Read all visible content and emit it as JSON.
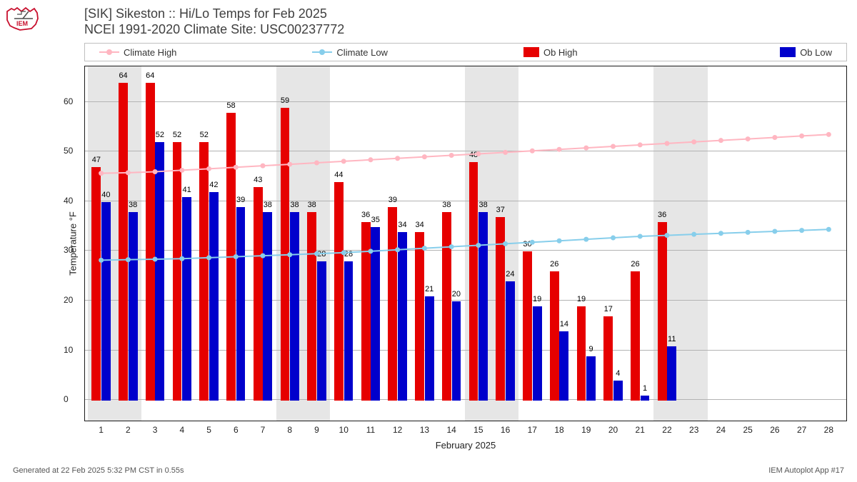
{
  "logo": {
    "text": "IEM",
    "outline_color": "#c8102e",
    "dial_color": "#4d4d4d"
  },
  "title": {
    "line1": "[SIK] Sikeston :: Hi/Lo Temps for Feb 2025",
    "line2": "NCEI 1991-2020 Climate Site: USC00237772",
    "fontsize": 18,
    "color": "#404040"
  },
  "legend": {
    "climate_high": "Climate High",
    "climate_low": "Climate Low",
    "ob_high": "Ob High",
    "ob_low": "Ob Low"
  },
  "axes": {
    "xlabel": "February 2025",
    "ylabel": "Temperature °F",
    "ylim_min": -4,
    "ylim_max": 67,
    "yticks": [
      0,
      10,
      20,
      30,
      40,
      50,
      60
    ],
    "xticks": [
      1,
      2,
      3,
      4,
      5,
      6,
      7,
      8,
      9,
      10,
      11,
      12,
      13,
      14,
      15,
      16,
      17,
      18,
      19,
      20,
      21,
      22,
      23,
      24,
      25,
      26,
      27,
      28
    ],
    "tick_fontsize": 12,
    "label_fontsize": 13,
    "grid_color": "#b3b3b3",
    "border_color": "#1a1a1a",
    "background_color": "#ffffff",
    "weekend_band_color": "#e6e6e6",
    "weekend_pairs": [
      [
        1,
        2
      ],
      [
        8,
        9
      ],
      [
        15,
        16
      ],
      [
        22,
        23
      ]
    ]
  },
  "series": {
    "climate_high": {
      "color": "#ffb6c1",
      "marker_size": 7,
      "line_width": 2,
      "values": [
        45.5,
        45.6,
        45.8,
        46.1,
        46.4,
        46.7,
        47.0,
        47.3,
        47.6,
        47.9,
        48.2,
        48.5,
        48.8,
        49.1,
        49.4,
        49.7,
        50.0,
        50.3,
        50.6,
        50.9,
        51.2,
        51.5,
        51.8,
        52.1,
        52.4,
        52.7,
        53.0,
        53.3
      ]
    },
    "climate_low": {
      "color": "#87ceeb",
      "marker_size": 7,
      "line_width": 2,
      "values": [
        28.0,
        28.1,
        28.2,
        28.3,
        28.5,
        28.7,
        28.9,
        29.1,
        29.3,
        29.5,
        29.8,
        30.1,
        30.4,
        30.7,
        31.0,
        31.3,
        31.6,
        31.9,
        32.2,
        32.5,
        32.8,
        33.0,
        33.2,
        33.4,
        33.6,
        33.8,
        34.0,
        34.2
      ]
    },
    "ob_high": {
      "color": "#e60000",
      "bar_width": 0.34,
      "values": [
        47,
        64,
        64,
        52,
        52,
        58,
        43,
        59,
        38,
        44,
        36,
        39,
        34,
        38,
        48,
        37,
        30,
        26,
        19,
        17,
        26,
        36
      ]
    },
    "ob_low": {
      "color": "#0000cc",
      "bar_width": 0.34,
      "values": [
        40,
        38,
        52,
        41,
        42,
        39,
        38,
        38,
        28,
        28,
        35,
        34,
        21,
        20,
        38,
        24,
        19,
        14,
        9,
        4,
        1,
        11
      ]
    }
  },
  "footer": {
    "left": "Generated at 22 Feb 2025 5:32 PM CST in 0.55s",
    "right": "IEM Autoplot App #17"
  }
}
